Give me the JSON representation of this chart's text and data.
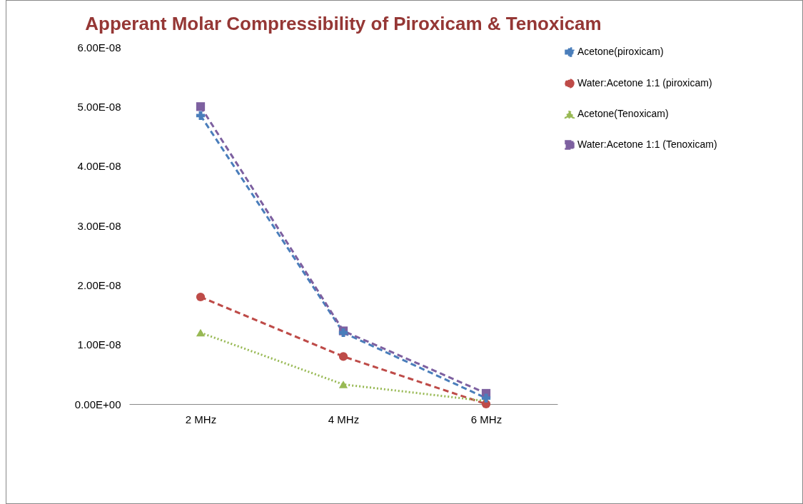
{
  "chart_data": {
    "type": "line",
    "title": "Apperant Molar Compressibility of Piroxicam & Tenoxicam",
    "categories": [
      "2 MHz",
      "4 MHz",
      "6 MHz"
    ],
    "ylim": [
      0,
      6e-08
    ],
    "yticks": [
      {
        "value": 0,
        "label": "0.00E+00"
      },
      {
        "value": 1e-08,
        "label": "1.00E-08"
      },
      {
        "value": 2e-08,
        "label": "2.00E-08"
      },
      {
        "value": 3e-08,
        "label": "3.00E-08"
      },
      {
        "value": 4e-08,
        "label": "4.00E-08"
      },
      {
        "value": 5e-08,
        "label": "5.00E-08"
      },
      {
        "value": 6e-08,
        "label": "6.00E-08"
      }
    ],
    "grid": false,
    "legend": "right",
    "series": [
      {
        "name": "Acetone(piroxicam)",
        "color": "#4a7ebb",
        "marker": "cross",
        "line_style": "dashed",
        "values": [
          4.85e-08,
          1.2e-08,
          1e-09
        ]
      },
      {
        "name": "Water:Acetone 1:1 (piroxicam)",
        "color": "#be4b48",
        "marker": "circle",
        "line_style": "dashed",
        "values": [
          1.8e-08,
          8e-09,
          0
        ]
      },
      {
        "name": "Acetone(Tenoxicam)",
        "color": "#98b954",
        "marker": "triangle",
        "line_style": "dotted",
        "values": [
          1.2e-08,
          3.3e-09,
          5e-10
        ]
      },
      {
        "name": "Water:Acetone 1:1 (Tenoxicam)",
        "color": "#7d60a0",
        "marker": "square",
        "line_style": "dashed",
        "values": [
          5e-08,
          1.23e-08,
          1.8e-09
        ]
      }
    ]
  }
}
